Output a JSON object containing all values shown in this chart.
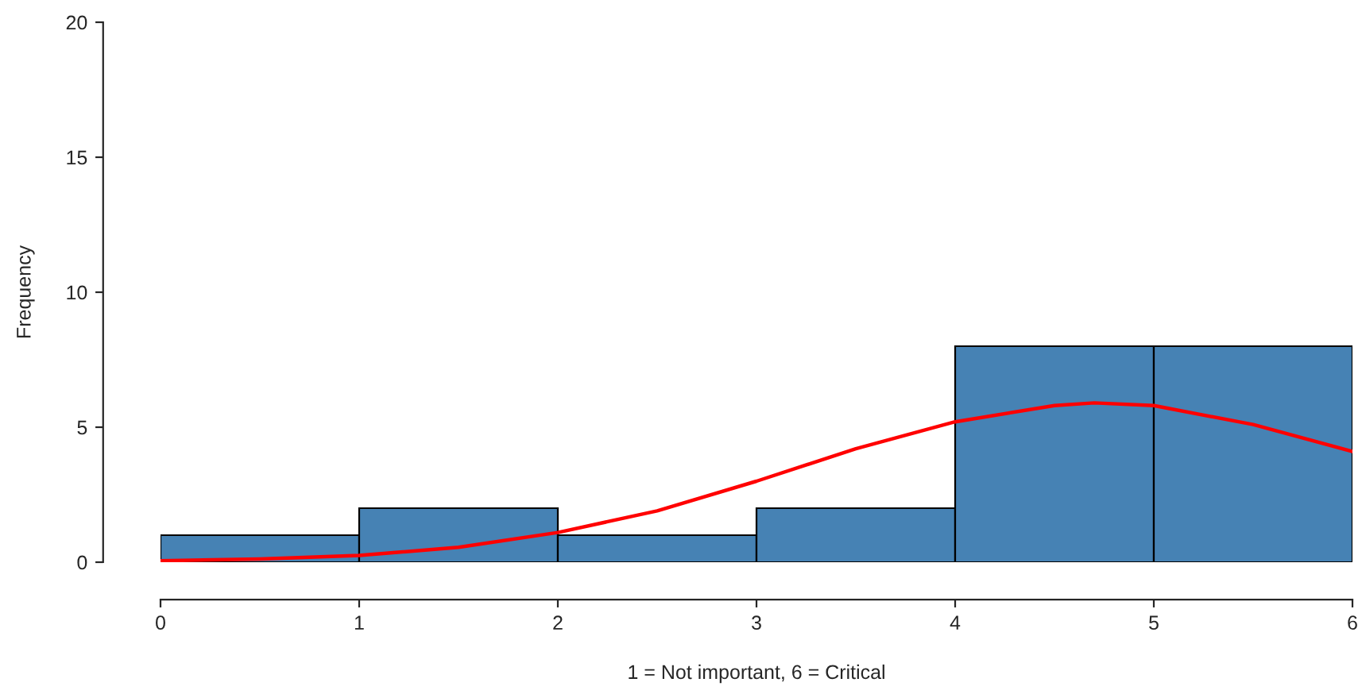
{
  "chart_data": {
    "type": "histogram",
    "xlabel": "1 = Not important, 6 = Critical",
    "ylabel": "Frequency",
    "bins": [
      0,
      1,
      2,
      3,
      4,
      5,
      6
    ],
    "series": [
      {
        "color": "#4682b4",
        "values": [
          1,
          2,
          1,
          2,
          8,
          8
        ]
      },
      {
        "type": "line",
        "color": "#ff0000",
        "x": [
          0,
          0.5,
          1,
          1.5,
          2,
          2.5,
          3,
          3.5,
          4,
          4.5,
          4.7,
          5,
          5.5,
          6
        ],
        "values": [
          0.05,
          0.12,
          0.25,
          0.55,
          1.1,
          1.9,
          3.0,
          4.2,
          5.2,
          5.8,
          5.9,
          5.8,
          5.1,
          4.1
        ]
      }
    ],
    "xlim": [
      0,
      6
    ],
    "xticks": [
      0,
      1,
      2,
      3,
      4,
      5,
      6
    ],
    "ylim": [
      0,
      20
    ],
    "yticks": [
      0,
      5,
      10,
      15,
      20
    ],
    "grid": false
  }
}
